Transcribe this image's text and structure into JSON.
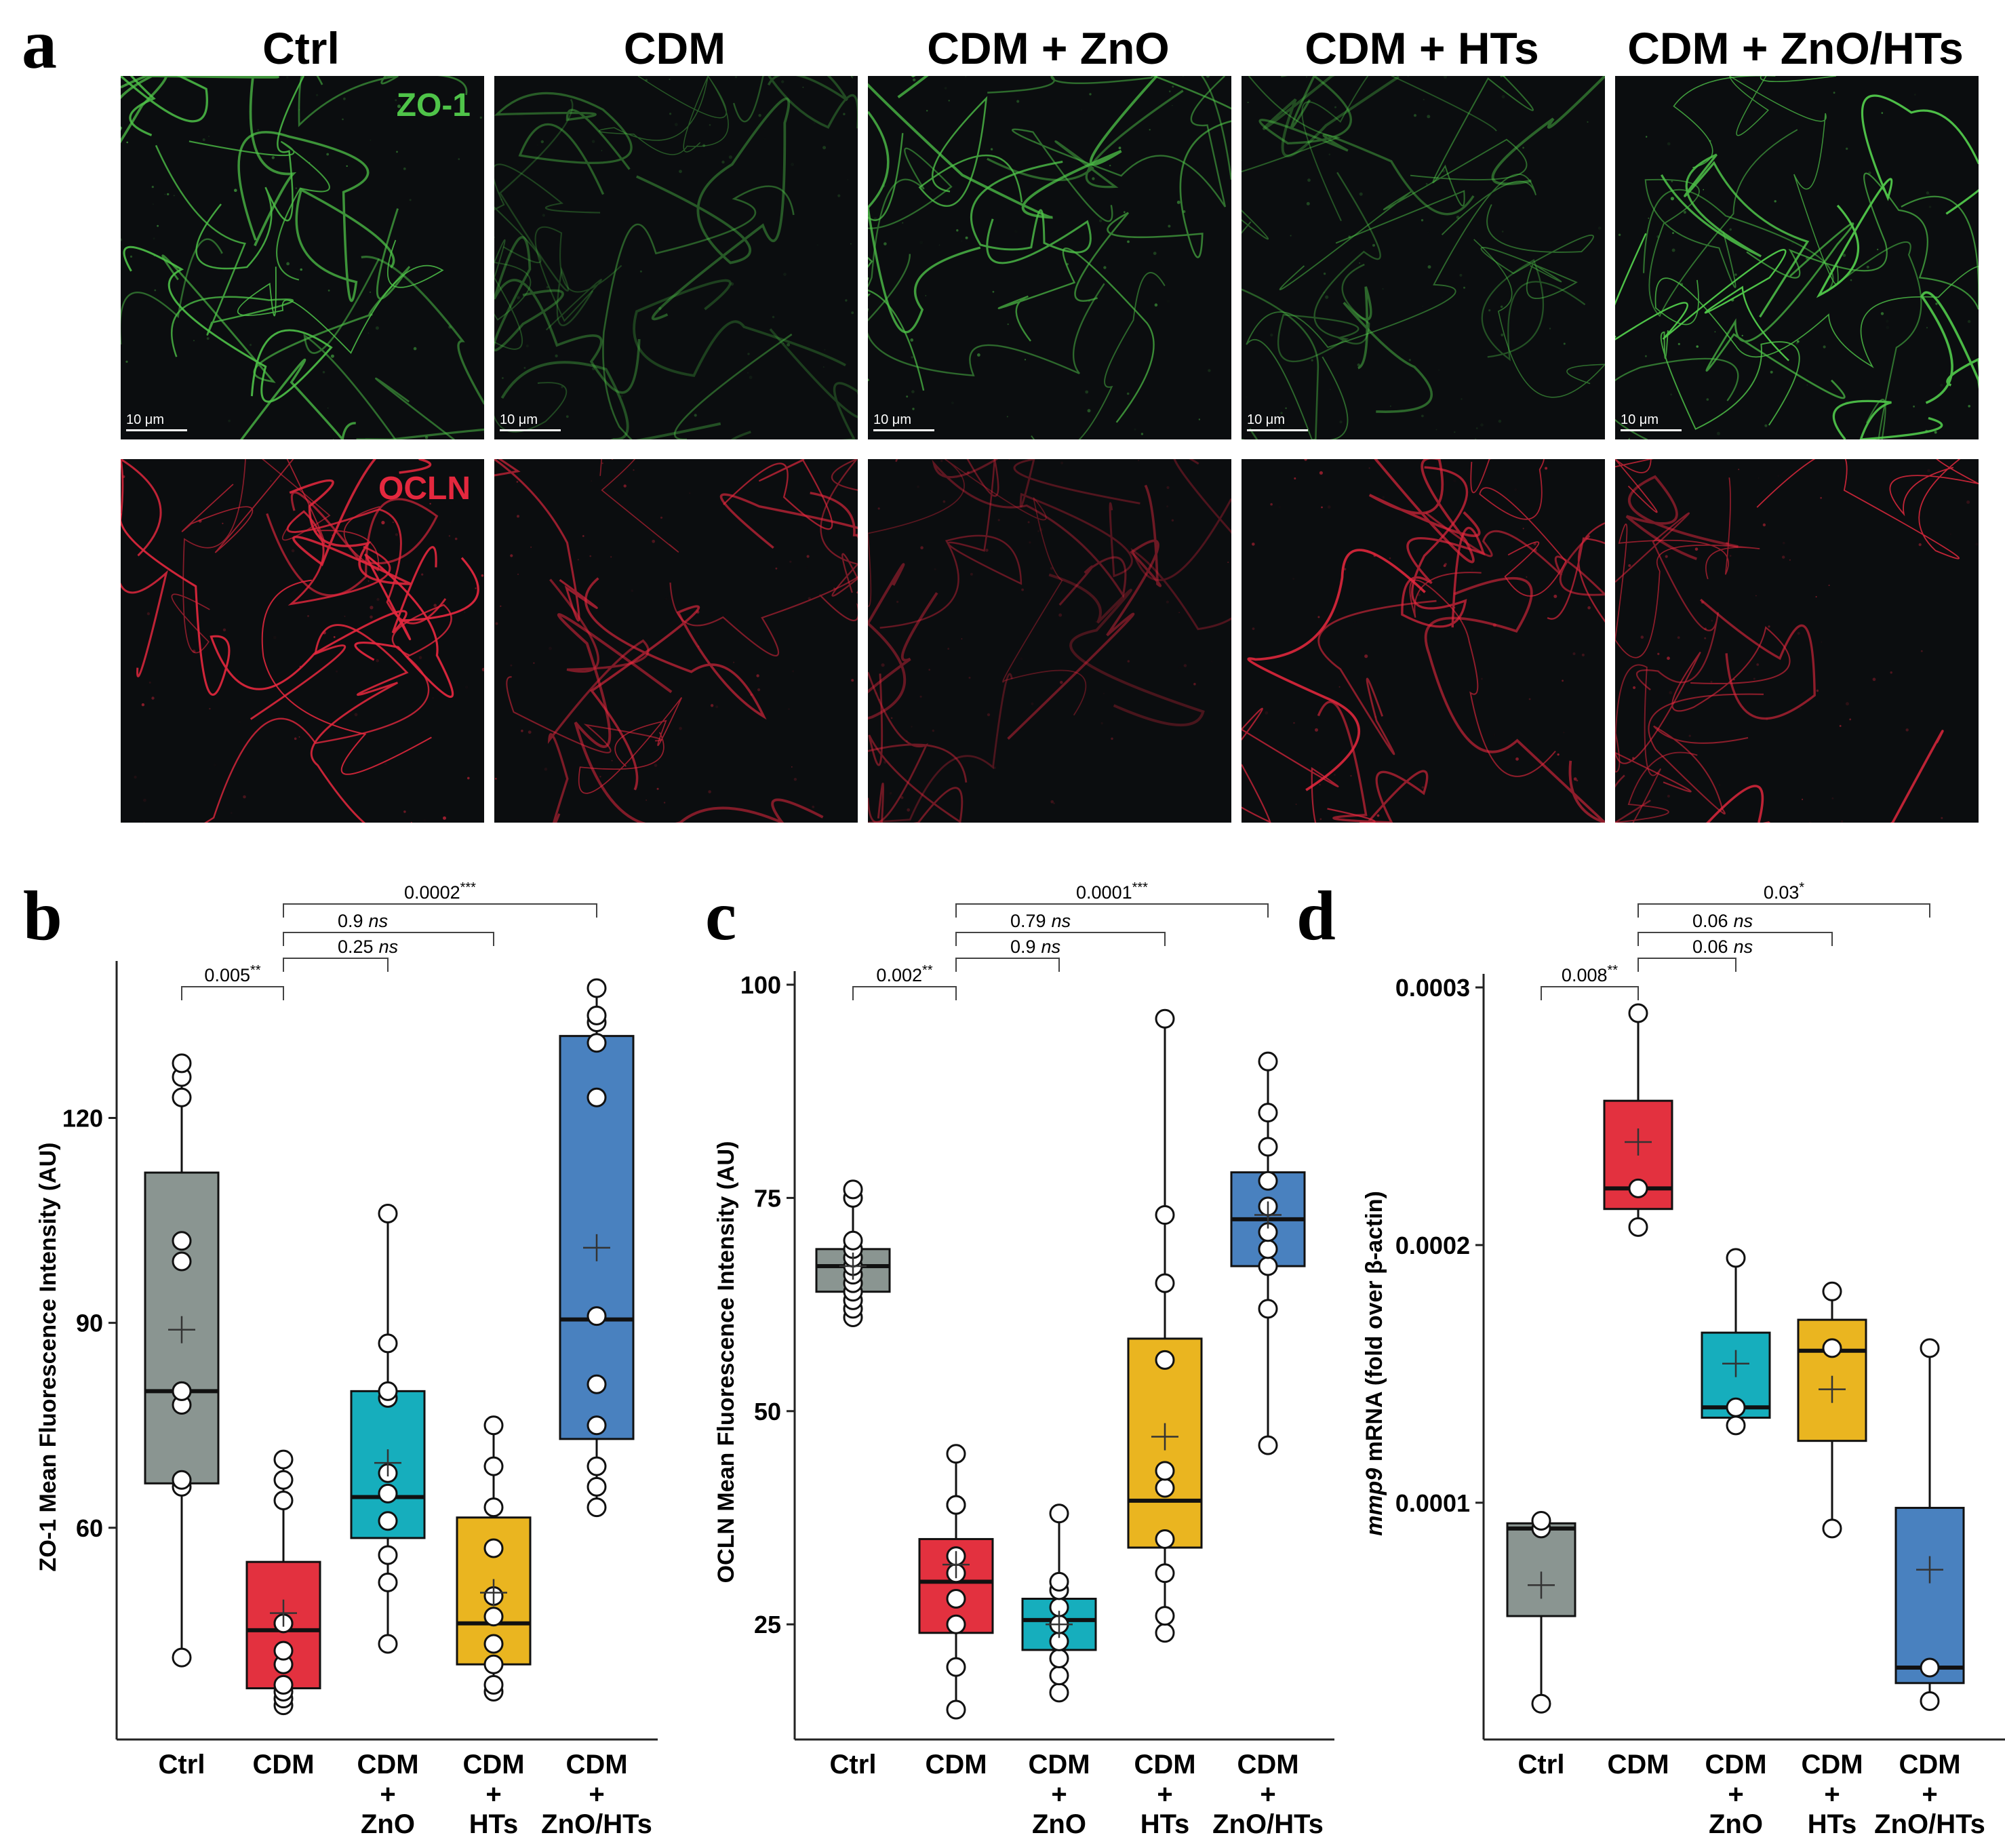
{
  "panel_a": {
    "letter": "a",
    "columns": [
      "Ctrl",
      "CDM",
      "CDM + ZnO",
      "CDM + HTs",
      "CDM + ZnO/HTs"
    ],
    "rows": [
      {
        "stain": "ZO-1",
        "color": "#4fc449"
      },
      {
        "stain": "OCLN",
        "color": "#e4283e"
      }
    ],
    "scale_bar": "10 μm"
  },
  "chart_data": [
    {
      "panel": "b",
      "type": "box",
      "categories": [
        [
          "Ctrl"
        ],
        [
          "CDM"
        ],
        [
          "CDM",
          "+",
          "ZnO"
        ],
        [
          "CDM",
          "+",
          "HTs"
        ],
        [
          "CDM",
          "+",
          "ZnO/HTs"
        ]
      ],
      "ylabel": "ZO-1 Mean Fluorescence Intensity (AU)",
      "yticks": [
        "60",
        "90",
        "120"
      ],
      "tick_values": [
        60,
        90,
        120
      ],
      "ylim": [
        29,
        141
      ],
      "colors": [
        "#8a9591",
        "#e3313f",
        "#16aebd",
        "#eab520",
        "#4981bf"
      ],
      "boxes": [
        {
          "whisker_low": 41,
          "q1": 66.5,
          "median": 80,
          "q3": 112,
          "whisker_high": 128,
          "mean": 89,
          "points": [
            41,
            66,
            67,
            78,
            80,
            80,
            99,
            102,
            123,
            126,
            128
          ]
        },
        {
          "whisker_low": 34,
          "q1": 36.5,
          "median": 45,
          "q3": 55,
          "whisker_high": 70,
          "mean": 47.5,
          "points": [
            34,
            35,
            36,
            37,
            40,
            42,
            46,
            46,
            64,
            67,
            70
          ]
        },
        {
          "whisker_low": 43,
          "q1": 58.5,
          "median": 64.5,
          "q3": 80,
          "whisker_high": 106,
          "mean": 69.5,
          "points": [
            43,
            52,
            56,
            61,
            65,
            68,
            79,
            80,
            87,
            106
          ]
        },
        {
          "whisker_low": 36,
          "q1": 40,
          "median": 46,
          "q3": 61.5,
          "whisker_high": 75,
          "mean": 50.5,
          "points": [
            36,
            37,
            40,
            43,
            47,
            50,
            57,
            63,
            69,
            75
          ]
        },
        {
          "whisker_low": 63,
          "q1": 73,
          "median": 90.5,
          "q3": 132,
          "whisker_high": 139,
          "mean": 101,
          "points": [
            63,
            66,
            69,
            75,
            81,
            91,
            123,
            131,
            134,
            135,
            139
          ]
        }
      ],
      "comparisons": [
        {
          "from": 0,
          "to": 1,
          "label": "0.005",
          "stars": "**"
        },
        {
          "from": 1,
          "to": 2,
          "label": "0.25",
          "ns": "ns"
        },
        {
          "from": 1,
          "to": 3,
          "label": "0.9",
          "ns": "ns"
        },
        {
          "from": 1,
          "to": 4,
          "label": "0.0002",
          "stars": "***"
        }
      ]
    },
    {
      "panel": "c",
      "type": "box",
      "categories": [
        [
          "Ctrl"
        ],
        [
          "CDM"
        ],
        [
          "CDM",
          "+",
          "ZnO"
        ],
        [
          "CDM",
          "+",
          "HTs"
        ],
        [
          "CDM",
          "+",
          "ZnO/HTs"
        ]
      ],
      "ylabel": "OCLN Mean Fluorescence Intensity (AU)",
      "yticks": [
        "25",
        "50",
        "75",
        "100"
      ],
      "tick_values": [
        25,
        50,
        75,
        100
      ],
      "ylim": [
        11.5,
        100
      ],
      "colors": [
        "#8a9591",
        "#e3313f",
        "#16aebd",
        "#eab520",
        "#4981bf"
      ],
      "boxes": [
        {
          "whisker_low": 61,
          "q1": 64,
          "median": 67,
          "q3": 69,
          "whisker_high": 76,
          "mean": 67,
          "points": [
            61,
            62,
            63,
            64,
            65,
            66,
            67,
            68,
            69,
            70,
            75,
            76
          ]
        },
        {
          "whisker_low": 15,
          "q1": 24,
          "median": 30,
          "q3": 35,
          "whisker_high": 45,
          "mean": 32,
          "points": [
            15,
            20,
            25,
            28,
            31,
            33,
            39,
            39,
            45
          ]
        },
        {
          "whisker_low": 17,
          "q1": 22,
          "median": 25.5,
          "q3": 28,
          "whisker_high": 38,
          "mean": 25,
          "points": [
            17,
            19,
            21,
            23,
            25,
            27,
            29,
            30,
            38
          ]
        },
        {
          "whisker_low": 24,
          "q1": 34,
          "median": 39.5,
          "q3": 58.5,
          "whisker_high": 96,
          "mean": 47,
          "points": [
            24,
            26,
            31,
            35,
            41,
            43,
            56,
            65,
            73,
            96
          ]
        },
        {
          "whisker_low": 46,
          "q1": 67,
          "median": 72.5,
          "q3": 78,
          "whisker_high": 91,
          "mean": 73,
          "points": [
            46,
            62,
            67,
            69,
            71,
            74,
            77,
            81,
            85,
            91
          ]
        }
      ],
      "comparisons": [
        {
          "from": 0,
          "to": 1,
          "label": "0.002",
          "stars": "**"
        },
        {
          "from": 1,
          "to": 2,
          "label": "0.9",
          "ns": "ns"
        },
        {
          "from": 1,
          "to": 3,
          "label": "0.79",
          "ns": "ns"
        },
        {
          "from": 1,
          "to": 4,
          "label": "0.0001",
          "stars": "***"
        }
      ]
    },
    {
      "panel": "d",
      "type": "box",
      "categories": [
        [
          "Ctrl"
        ],
        [
          "CDM"
        ],
        [
          "CDM",
          "+",
          "ZnO"
        ],
        [
          "CDM",
          "+",
          "HTs"
        ],
        [
          "CDM",
          "+",
          "ZnO/HTs"
        ]
      ],
      "ylabel_italic": "mmp9",
      "ylabel": " mRNA (fold over β-actin)",
      "yticks": [
        "0.0001",
        "0.0002",
        "0.0003"
      ],
      "tick_values": [
        0.0001,
        0.0002,
        0.0003
      ],
      "ylim": [
        8.1e-06,
        0.0003
      ],
      "colors": [
        "#8a9591",
        "#e3313f",
        "#16aebd",
        "#eab520",
        "#4981bf"
      ],
      "boxes": [
        {
          "whisker_low": 2.2e-05,
          "q1": 5.6e-05,
          "median": 9e-05,
          "q3": 9.2e-05,
          "whisker_high": 9.3e-05,
          "mean": 6.8e-05,
          "points": [
            2.2e-05,
            9e-05,
            9.3e-05
          ]
        },
        {
          "whisker_low": 0.000207,
          "q1": 0.000214,
          "median": 0.000222,
          "q3": 0.000256,
          "whisker_high": 0.00029,
          "mean": 0.00024,
          "points": [
            0.000207,
            0.000222,
            0.00029
          ]
        },
        {
          "whisker_low": 0.00013,
          "q1": 0.000133,
          "median": 0.000137,
          "q3": 0.000166,
          "whisker_high": 0.000195,
          "mean": 0.000154,
          "points": [
            0.00013,
            0.000137,
            0.000195
          ]
        },
        {
          "whisker_low": 9e-05,
          "q1": 0.000124,
          "median": 0.000159,
          "q3": 0.000171,
          "whisker_high": 0.000182,
          "mean": 0.000144,
          "points": [
            9e-05,
            0.00016,
            0.000182
          ]
        },
        {
          "whisker_low": 2.3e-05,
          "q1": 3e-05,
          "median": 3.6e-05,
          "q3": 9.8e-05,
          "whisker_high": 0.00016,
          "mean": 7.4e-05,
          "points": [
            2.3e-05,
            3.6e-05,
            0.00016
          ]
        }
      ],
      "comparisons": [
        {
          "from": 0,
          "to": 1,
          "label": "0.008",
          "stars": "**"
        },
        {
          "from": 1,
          "to": 2,
          "label": "0.06",
          "ns": "ns"
        },
        {
          "from": 1,
          "to": 3,
          "label": "0.06",
          "ns": "ns"
        },
        {
          "from": 1,
          "to": 4,
          "label": "0.03",
          "stars": "*"
        }
      ]
    }
  ]
}
